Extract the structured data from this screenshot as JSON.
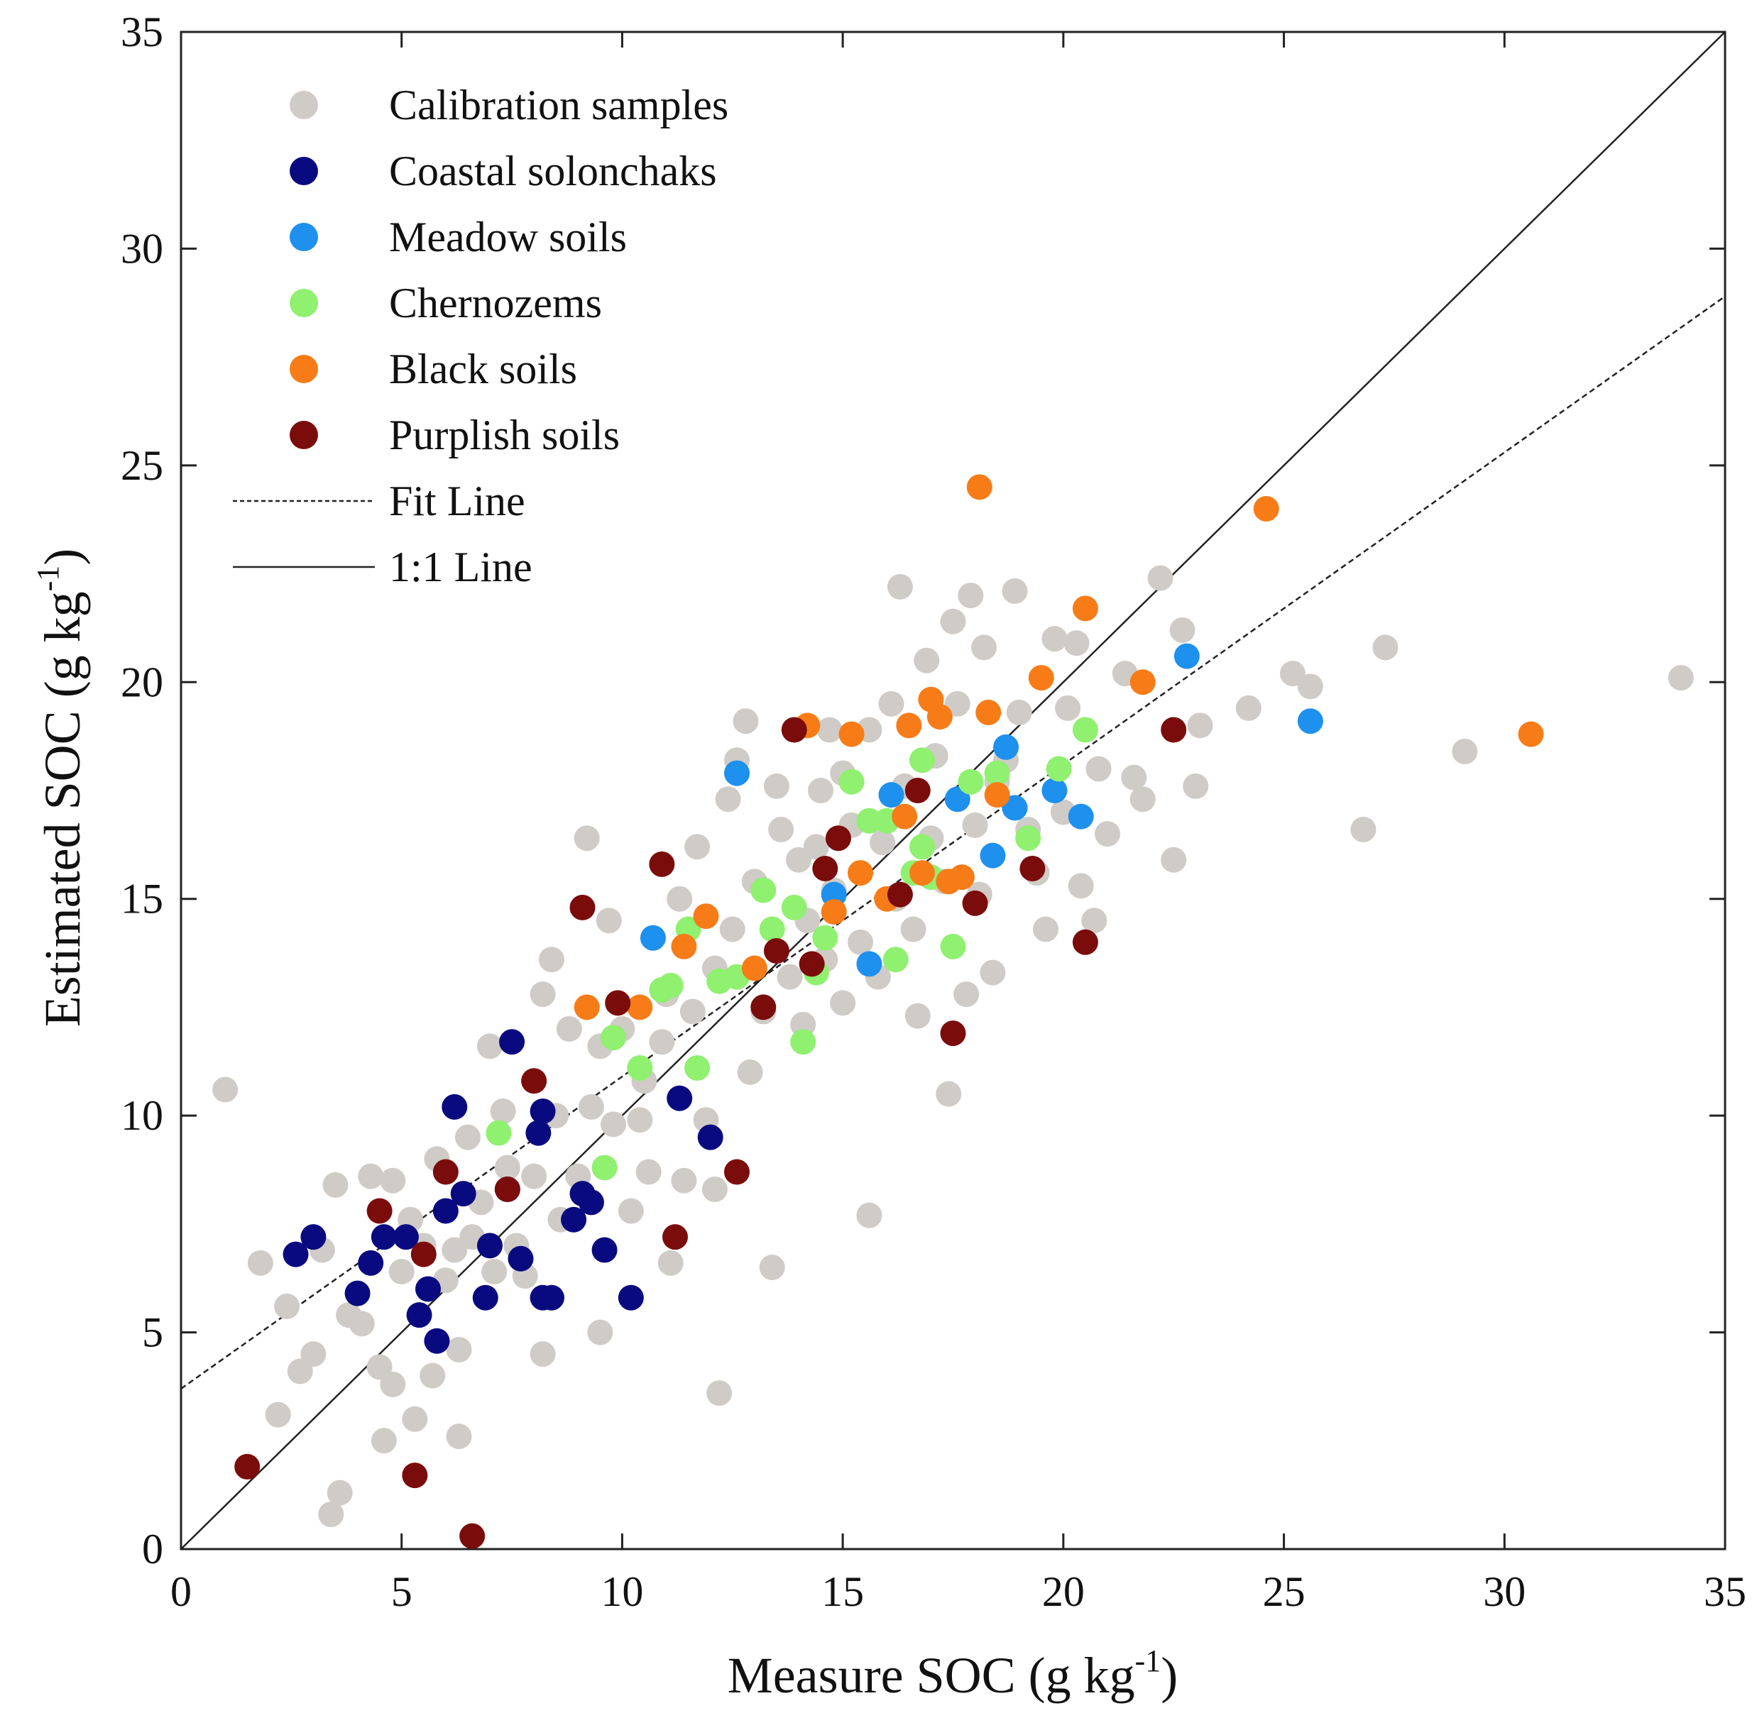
{
  "chart_data": {
    "type": "scatter",
    "title": "",
    "xlabel_text": "Measure SOC (g kg",
    "xlabel_sup": "-1",
    "xlabel_close": ")",
    "ylabel_text": "Estimated SOC (g kg",
    "ylabel_sup": "-1",
    "ylabel_close": ")",
    "xlim": [
      0,
      35
    ],
    "ylim": [
      0,
      35
    ],
    "x_ticks": [
      "0",
      "5",
      "10",
      "15",
      "20",
      "25",
      "30",
      "35"
    ],
    "y_ticks": [
      "0",
      "5",
      "10",
      "15",
      "20",
      "25",
      "30",
      "35"
    ],
    "grid": false,
    "legend_position": "top-left",
    "lines": [
      {
        "name": "Fit Line",
        "style": "dashed",
        "x": [
          0,
          35
        ],
        "y": [
          3.7,
          28.9
        ]
      },
      {
        "name": "1:1 Line",
        "style": "solid",
        "x": [
          0,
          35
        ],
        "y": [
          0,
          35
        ]
      }
    ],
    "series": [
      {
        "name": "Calibration samples",
        "color": "#cfcbc6",
        "points": [
          [
            1.0,
            10.6
          ],
          [
            1.8,
            6.6
          ],
          [
            2.2,
            3.1
          ],
          [
            2.4,
            5.6
          ],
          [
            2.7,
            4.1
          ],
          [
            3.0,
            4.5
          ],
          [
            3.2,
            6.9
          ],
          [
            3.4,
            0.8
          ],
          [
            3.5,
            8.4
          ],
          [
            3.6,
            1.3
          ],
          [
            3.8,
            5.4
          ],
          [
            4.1,
            5.2
          ],
          [
            4.3,
            8.6
          ],
          [
            4.5,
            4.2
          ],
          [
            4.6,
            2.5
          ],
          [
            4.8,
            3.8
          ],
          [
            4.8,
            8.5
          ],
          [
            5.0,
            6.4
          ],
          [
            5.2,
            7.6
          ],
          [
            5.3,
            3.0
          ],
          [
            5.5,
            7.0
          ],
          [
            5.7,
            4.0
          ],
          [
            5.8,
            9.0
          ],
          [
            6.0,
            6.2
          ],
          [
            6.2,
            6.9
          ],
          [
            6.3,
            2.6
          ],
          [
            6.3,
            4.6
          ],
          [
            6.5,
            9.5
          ],
          [
            6.6,
            7.2
          ],
          [
            6.8,
            8.0
          ],
          [
            7.0,
            11.6
          ],
          [
            7.1,
            6.4
          ],
          [
            7.3,
            10.1
          ],
          [
            7.4,
            8.8
          ],
          [
            7.6,
            7.0
          ],
          [
            7.8,
            6.3
          ],
          [
            8.0,
            8.6
          ],
          [
            8.2,
            4.5
          ],
          [
            8.2,
            12.8
          ],
          [
            8.4,
            13.6
          ],
          [
            8.5,
            10.0
          ],
          [
            8.6,
            7.6
          ],
          [
            8.8,
            12.0
          ],
          [
            9.0,
            8.6
          ],
          [
            9.2,
            16.4
          ],
          [
            9.3,
            10.2
          ],
          [
            9.5,
            11.6
          ],
          [
            9.5,
            5.0
          ],
          [
            9.7,
            14.5
          ],
          [
            9.8,
            9.8
          ],
          [
            10.0,
            12.0
          ],
          [
            10.2,
            7.8
          ],
          [
            10.4,
            9.9
          ],
          [
            10.5,
            10.8
          ],
          [
            10.6,
            8.7
          ],
          [
            10.9,
            11.7
          ],
          [
            11.0,
            12.8
          ],
          [
            11.1,
            6.6
          ],
          [
            11.3,
            15.0
          ],
          [
            11.4,
            8.5
          ],
          [
            11.6,
            12.4
          ],
          [
            11.7,
            16.2
          ],
          [
            11.9,
            9.9
          ],
          [
            12.1,
            13.4
          ],
          [
            12.1,
            8.3
          ],
          [
            12.2,
            3.6
          ],
          [
            12.4,
            17.3
          ],
          [
            12.5,
            14.3
          ],
          [
            12.6,
            18.2
          ],
          [
            12.8,
            19.1
          ],
          [
            12.9,
            11.0
          ],
          [
            13.0,
            15.4
          ],
          [
            13.2,
            12.4
          ],
          [
            13.4,
            6.5
          ],
          [
            13.5,
            17.6
          ],
          [
            13.6,
            16.6
          ],
          [
            13.8,
            13.2
          ],
          [
            14.0,
            15.9
          ],
          [
            14.1,
            12.1
          ],
          [
            14.2,
            14.5
          ],
          [
            14.4,
            16.2
          ],
          [
            14.5,
            17.5
          ],
          [
            14.6,
            13.6
          ],
          [
            14.7,
            18.9
          ],
          [
            14.8,
            15.2
          ],
          [
            15.0,
            17.9
          ],
          [
            15.0,
            12.6
          ],
          [
            15.2,
            16.7
          ],
          [
            15.4,
            14.0
          ],
          [
            15.6,
            7.7
          ],
          [
            15.6,
            18.9
          ],
          [
            15.8,
            13.2
          ],
          [
            15.9,
            16.3
          ],
          [
            16.1,
            19.5
          ],
          [
            16.2,
            15.0
          ],
          [
            16.3,
            22.2
          ],
          [
            16.4,
            17.6
          ],
          [
            16.6,
            14.3
          ],
          [
            16.7,
            12.3
          ],
          [
            16.9,
            20.5
          ],
          [
            17.0,
            16.4
          ],
          [
            17.1,
            18.3
          ],
          [
            17.3,
            15.4
          ],
          [
            17.4,
            10.5
          ],
          [
            17.5,
            21.4
          ],
          [
            17.6,
            19.5
          ],
          [
            17.8,
            12.8
          ],
          [
            17.9,
            22.0
          ],
          [
            18.0,
            16.7
          ],
          [
            18.1,
            15.1
          ],
          [
            18.2,
            20.8
          ],
          [
            18.4,
            13.3
          ],
          [
            18.5,
            17.7
          ],
          [
            18.7,
            18.2
          ],
          [
            18.9,
            22.1
          ],
          [
            19.0,
            19.3
          ],
          [
            19.2,
            16.6
          ],
          [
            19.4,
            15.6
          ],
          [
            19.6,
            14.3
          ],
          [
            19.8,
            21.0
          ],
          [
            20.0,
            17.0
          ],
          [
            20.1,
            19.4
          ],
          [
            20.3,
            20.9
          ],
          [
            20.4,
            15.3
          ],
          [
            20.7,
            14.5
          ],
          [
            20.8,
            18.0
          ],
          [
            21.0,
            16.5
          ],
          [
            21.4,
            20.2
          ],
          [
            21.6,
            17.8
          ],
          [
            21.8,
            17.3
          ],
          [
            22.2,
            22.4
          ],
          [
            22.5,
            15.9
          ],
          [
            22.7,
            21.2
          ],
          [
            23.1,
            19.0
          ],
          [
            23.0,
            17.6
          ],
          [
            24.2,
            19.4
          ],
          [
            25.2,
            20.2
          ],
          [
            25.6,
            19.9
          ],
          [
            26.8,
            16.6
          ],
          [
            27.3,
            20.8
          ],
          [
            29.1,
            18.4
          ],
          [
            34.0,
            20.1
          ]
        ]
      },
      {
        "name": "Coastal solonchaks",
        "color": "#0a0a80",
        "points": [
          [
            2.6,
            6.8
          ],
          [
            3.0,
            7.2
          ],
          [
            4.0,
            5.9
          ],
          [
            4.3,
            6.6
          ],
          [
            4.6,
            7.2
          ],
          [
            5.1,
            7.2
          ],
          [
            5.4,
            5.4
          ],
          [
            5.6,
            6.0
          ],
          [
            5.8,
            4.8
          ],
          [
            6.0,
            7.8
          ],
          [
            6.2,
            10.2
          ],
          [
            6.4,
            8.2
          ],
          [
            6.9,
            5.8
          ],
          [
            7.0,
            7.0
          ],
          [
            7.4,
            8.3
          ],
          [
            7.5,
            11.7
          ],
          [
            7.7,
            6.7
          ],
          [
            8.1,
            9.6
          ],
          [
            8.2,
            10.1
          ],
          [
            8.2,
            5.8
          ],
          [
            8.4,
            5.8
          ],
          [
            8.9,
            7.6
          ],
          [
            9.1,
            8.2
          ],
          [
            9.3,
            8.0
          ],
          [
            9.6,
            6.9
          ],
          [
            10.2,
            5.8
          ],
          [
            11.3,
            10.4
          ],
          [
            12.0,
            9.5
          ]
        ]
      },
      {
        "name": "Meadow soils",
        "color": "#1e90ee",
        "points": [
          [
            10.7,
            14.1
          ],
          [
            12.6,
            17.9
          ],
          [
            14.8,
            15.1
          ],
          [
            15.6,
            13.5
          ],
          [
            16.1,
            17.4
          ],
          [
            17.6,
            17.3
          ],
          [
            18.4,
            16.0
          ],
          [
            18.7,
            18.5
          ],
          [
            18.9,
            17.1
          ],
          [
            19.8,
            17.5
          ],
          [
            20.4,
            16.9
          ],
          [
            22.8,
            20.6
          ],
          [
            25.6,
            19.1
          ]
        ]
      },
      {
        "name": "Chernozems",
        "color": "#90f070",
        "points": [
          [
            7.2,
            9.6
          ],
          [
            9.6,
            8.8
          ],
          [
            9.8,
            11.8
          ],
          [
            10.4,
            11.1
          ],
          [
            10.9,
            12.9
          ],
          [
            11.1,
            13.0
          ],
          [
            11.5,
            14.3
          ],
          [
            11.7,
            11.1
          ],
          [
            12.2,
            13.1
          ],
          [
            12.6,
            13.2
          ],
          [
            13.2,
            15.2
          ],
          [
            13.4,
            14.3
          ],
          [
            13.9,
            14.8
          ],
          [
            14.1,
            11.7
          ],
          [
            14.4,
            13.3
          ],
          [
            14.6,
            14.1
          ],
          [
            15.2,
            17.7
          ],
          [
            15.6,
            16.8
          ],
          [
            16.0,
            16.8
          ],
          [
            16.2,
            13.6
          ],
          [
            16.6,
            15.6
          ],
          [
            16.8,
            16.2
          ],
          [
            16.8,
            18.2
          ],
          [
            17.0,
            15.5
          ],
          [
            17.5,
            13.9
          ],
          [
            17.9,
            17.7
          ],
          [
            18.5,
            17.9
          ],
          [
            19.2,
            16.4
          ],
          [
            19.9,
            18.0
          ],
          [
            20.5,
            18.9
          ]
        ]
      },
      {
        "name": "Black soils",
        "color": "#f77c18",
        "points": [
          [
            9.2,
            12.5
          ],
          [
            10.4,
            12.5
          ],
          [
            11.4,
            13.9
          ],
          [
            11.9,
            14.6
          ],
          [
            13.0,
            13.4
          ],
          [
            14.2,
            19.0
          ],
          [
            14.8,
            14.7
          ],
          [
            15.2,
            18.8
          ],
          [
            15.4,
            15.6
          ],
          [
            16.0,
            15.0
          ],
          [
            16.4,
            16.9
          ],
          [
            16.5,
            19.0
          ],
          [
            16.8,
            15.6
          ],
          [
            17.0,
            19.6
          ],
          [
            17.2,
            19.2
          ],
          [
            17.4,
            15.4
          ],
          [
            17.7,
            15.5
          ],
          [
            18.1,
            24.5
          ],
          [
            18.3,
            19.3
          ],
          [
            18.5,
            17.4
          ],
          [
            19.5,
            20.1
          ],
          [
            20.5,
            21.7
          ],
          [
            21.8,
            20.0
          ],
          [
            24.6,
            24.0
          ],
          [
            30.6,
            18.8
          ]
        ]
      },
      {
        "name": "Purplish soils",
        "color": "#7b0c0c",
        "points": [
          [
            1.5,
            1.9
          ],
          [
            4.5,
            7.8
          ],
          [
            5.3,
            1.7
          ],
          [
            5.5,
            6.8
          ],
          [
            6.0,
            8.7
          ],
          [
            6.6,
            0.3
          ],
          [
            7.4,
            8.3
          ],
          [
            8.0,
            10.8
          ],
          [
            9.1,
            14.8
          ],
          [
            9.9,
            12.6
          ],
          [
            10.9,
            15.8
          ],
          [
            11.2,
            7.2
          ],
          [
            12.6,
            8.7
          ],
          [
            13.2,
            12.5
          ],
          [
            13.5,
            13.8
          ],
          [
            13.9,
            18.9
          ],
          [
            14.3,
            13.5
          ],
          [
            14.6,
            15.7
          ],
          [
            14.9,
            16.4
          ],
          [
            16.3,
            15.1
          ],
          [
            16.7,
            17.5
          ],
          [
            17.5,
            11.9
          ],
          [
            18.0,
            14.9
          ],
          [
            19.3,
            15.7
          ],
          [
            20.5,
            14.0
          ],
          [
            22.5,
            18.9
          ]
        ]
      }
    ]
  }
}
